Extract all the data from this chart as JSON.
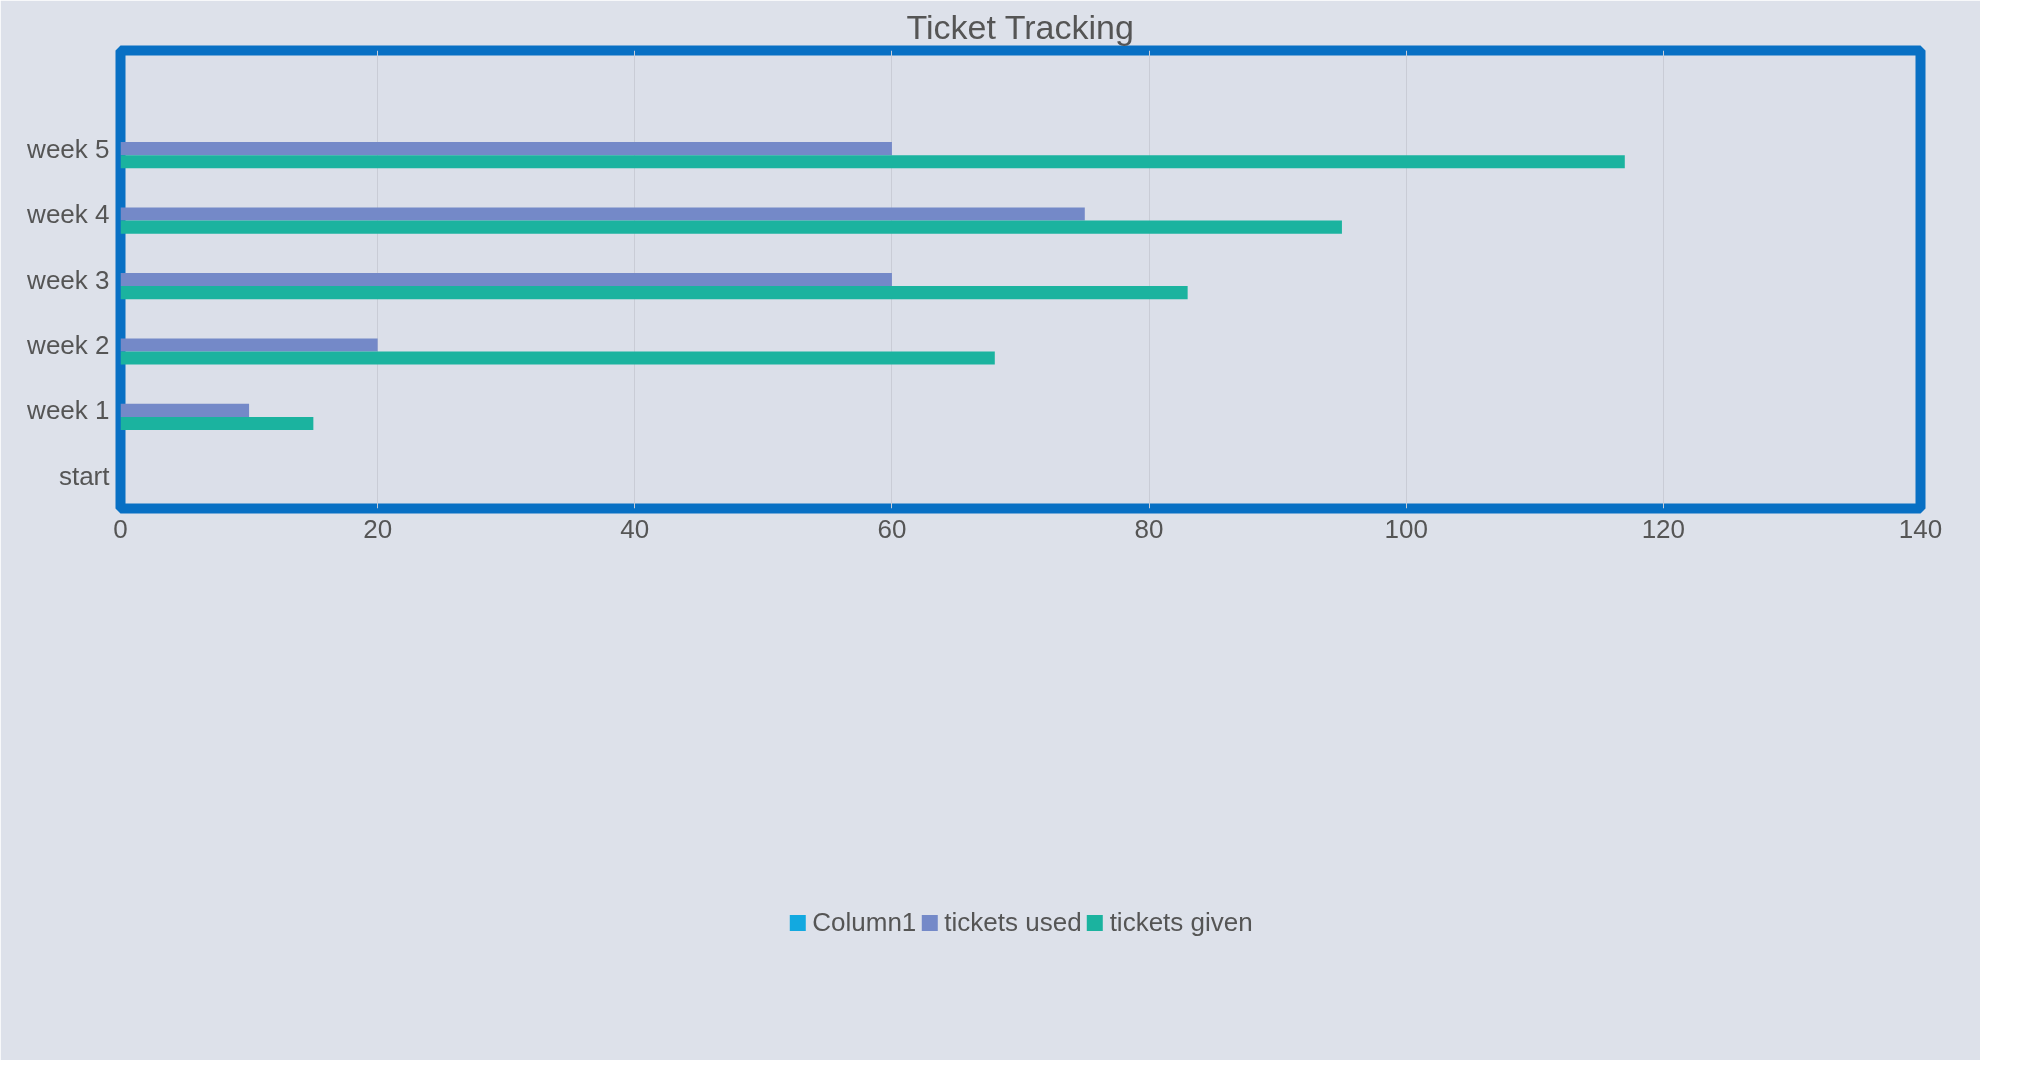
{
  "chart_data": {
    "type": "bar",
    "orientation": "horizontal",
    "title": "Ticket Tracking",
    "categories": [
      null,
      "week 5",
      "week 4",
      "week 3",
      "week 2",
      "week 1",
      "start"
    ],
    "series": [
      {
        "name": "Column1",
        "color": "#12a9e0",
        "values": [
          null,
          null,
          null,
          null,
          null,
          null,
          null
        ]
      },
      {
        "name": "tickets used",
        "color": "#7489c8",
        "values": [
          null,
          60,
          75,
          60,
          20,
          10,
          null
        ]
      },
      {
        "name": "tickets given",
        "color": "#1bb39f",
        "values": [
          null,
          117,
          95,
          83,
          68,
          15,
          null
        ]
      }
    ],
    "xlim": [
      0,
      140
    ],
    "xticks": [
      0,
      20,
      40,
      60,
      80,
      100,
      120,
      140
    ],
    "grid": "x",
    "legend": "bottom"
  }
}
